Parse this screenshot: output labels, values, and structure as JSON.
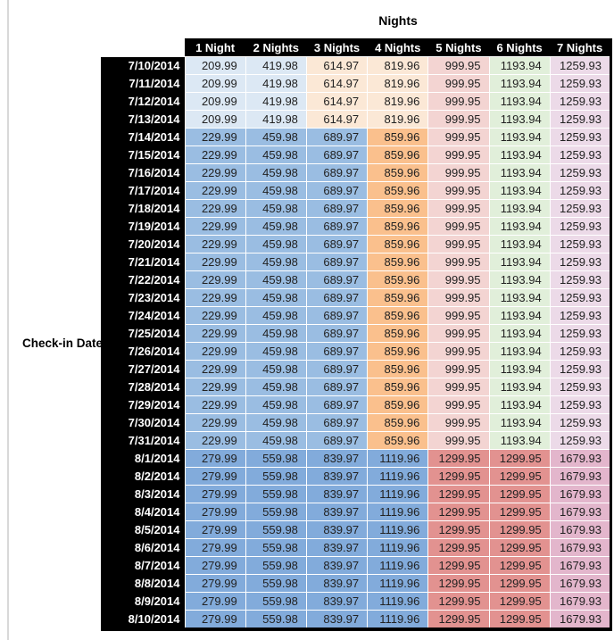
{
  "title": "Nights",
  "row_axis_label": "Check-in Date",
  "chart_data": {
    "type": "table",
    "title": "Nights",
    "row_axis_label": "Check-in Date",
    "columns": [
      "1 Night",
      "2 Nights",
      "3 Nights",
      "4 Nights",
      "5 Nights",
      "6 Nights",
      "7 Nights"
    ],
    "row_groups": [
      {
        "dates": [
          "7/10/2014",
          "7/11/2014",
          "7/12/2014",
          "7/13/2014"
        ],
        "values": [
          209.99,
          419.98,
          614.97,
          819.96,
          999.95,
          1193.94,
          1259.93
        ],
        "cell_colors": [
          "light_blue",
          "light_blue",
          "light_orange",
          "light_orange",
          "light_red",
          "light_green",
          "light_purple"
        ]
      },
      {
        "dates": [
          "7/14/2014",
          "7/15/2014",
          "7/16/2014",
          "7/17/2014",
          "7/18/2014",
          "7/19/2014",
          "7/20/2014",
          "7/21/2014",
          "7/22/2014",
          "7/23/2014",
          "7/24/2014",
          "7/25/2014",
          "7/26/2014",
          "7/27/2014",
          "7/28/2014",
          "7/29/2014",
          "7/30/2014",
          "7/31/2014"
        ],
        "values": [
          229.99,
          459.98,
          689.97,
          859.96,
          999.95,
          1193.94,
          1259.93
        ],
        "cell_colors": [
          "med_blue",
          "med_blue",
          "med_blue",
          "med_orange",
          "light_red",
          "light_green",
          "light_purple"
        ]
      },
      {
        "dates": [
          "8/1/2014",
          "8/2/2014",
          "8/3/2014",
          "8/4/2014",
          "8/5/2014",
          "8/6/2014",
          "8/7/2014",
          "8/8/2014",
          "8/9/2014",
          "8/10/2014"
        ],
        "values": [
          279.99,
          559.98,
          839.97,
          1119.96,
          1299.95,
          1299.95,
          1679.93
        ],
        "cell_colors": [
          "deep_blue",
          "deep_blue",
          "deep_blue",
          "deep_blue",
          "med_red",
          "med_red",
          "med_pink_purple"
        ]
      }
    ]
  },
  "palette": {
    "header_bg": "#000000",
    "header_text": "#ffffff",
    "value_text": "#222222",
    "light_blue": "#dce8f4",
    "med_blue": "#9abde2",
    "deep_blue": "#82abdb",
    "light_orange": "#fbe8d6",
    "med_orange": "#fac08d",
    "light_red": "#f3d4d2",
    "med_red": "#e29290",
    "light_green": "#e1efda",
    "light_purple": "#ecdae8",
    "med_pink_purple": "#e3b6cc",
    "grid_line": "#ffffff",
    "page_edge_line": "#d9d9d9"
  }
}
